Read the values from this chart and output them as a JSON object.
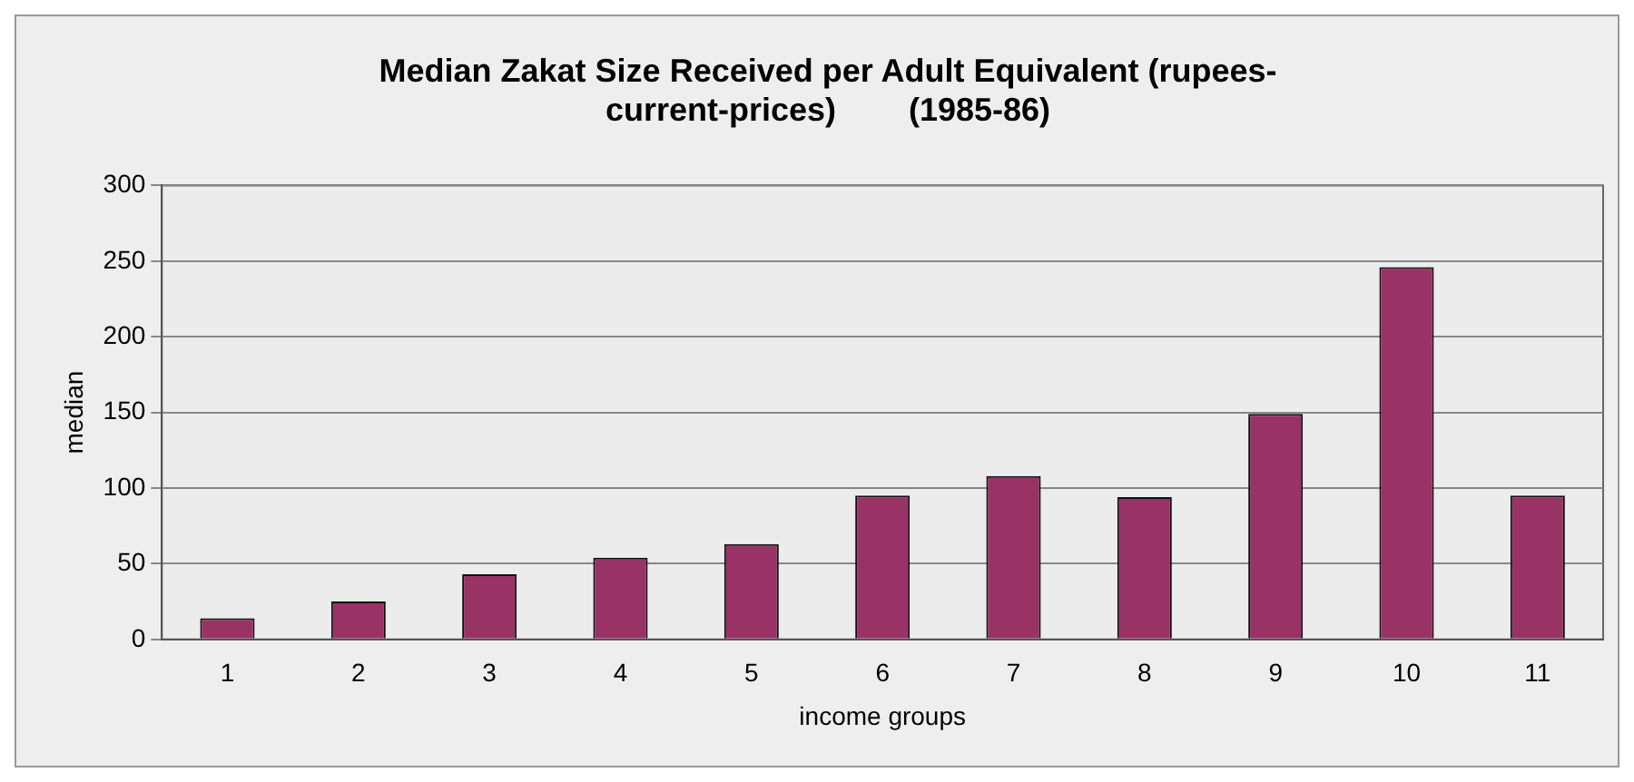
{
  "chart_data": {
    "type": "bar",
    "title": [
      "Median Zakat Size Received per Adult Equivalent (rupees-",
      "current-prices)        (1985-86)"
    ],
    "xlabel": "income groups",
    "ylabel": "median",
    "categories": [
      "1",
      "2",
      "3",
      "4",
      "5",
      "6",
      "7",
      "8",
      "9",
      "10",
      "11"
    ],
    "values": [
      14,
      25,
      43,
      54,
      63,
      95,
      108,
      94,
      149,
      246,
      95
    ],
    "color": "#993366",
    "ylim": [
      0,
      300
    ],
    "yticks": [
      0,
      50,
      100,
      150,
      200,
      250,
      300
    ],
    "grid": "y",
    "legend": false
  }
}
